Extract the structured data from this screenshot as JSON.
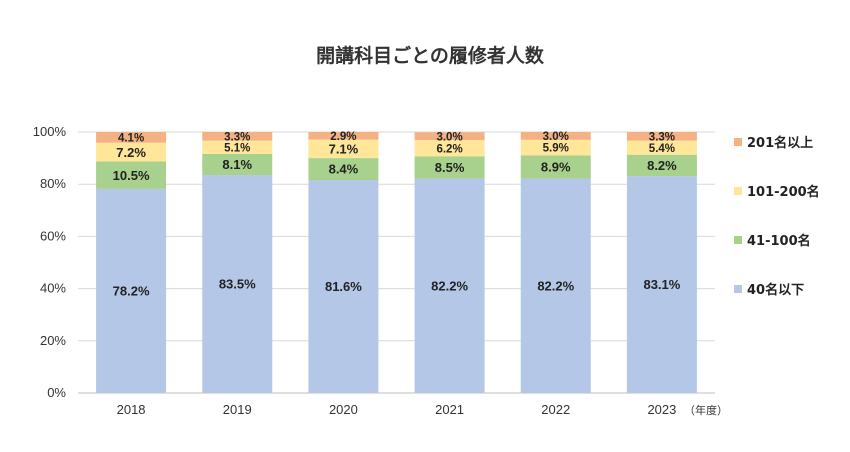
{
  "chart_data": {
    "type": "bar",
    "stacked": true,
    "title": "開講科目ごとの履修者人数",
    "x_unit": "（年度）",
    "categories": [
      "2018",
      "2019",
      "2020",
      "2021",
      "2022",
      "2023"
    ],
    "ylim": [
      0,
      100
    ],
    "y_ticks": [
      "0%",
      "20%",
      "40%",
      "60%",
      "80%",
      "100%"
    ],
    "grid": true,
    "legend_position": "right",
    "series": [
      {
        "name": "40名以下",
        "color": "#b4c7e7",
        "values": [
          78.2,
          83.5,
          81.6,
          82.2,
          82.2,
          83.1
        ],
        "labels": [
          "78.2%",
          "83.5%",
          "81.6%",
          "82.2%",
          "82.2%",
          "83.1%"
        ]
      },
      {
        "name": "41-100名",
        "color": "#a9d18e",
        "values": [
          10.5,
          8.1,
          8.4,
          8.5,
          8.9,
          8.2
        ],
        "labels": [
          "10.5%",
          "8.1%",
          "8.4%",
          "8.5%",
          "8.9%",
          "8.2%"
        ]
      },
      {
        "name": "101-200名",
        "color": "#ffe699",
        "values": [
          7.2,
          5.1,
          7.1,
          6.2,
          5.9,
          5.4
        ],
        "labels": [
          "7.2%",
          "5.1%",
          "7.1%",
          "6.2%",
          "5.9%",
          "5.4%"
        ]
      },
      {
        "name": "201名以上",
        "color": "#f4b183",
        "values": [
          4.1,
          3.3,
          2.9,
          3.0,
          3.0,
          3.3
        ],
        "labels": [
          "4.1%",
          "3.3%",
          "2.9%",
          "3.0%",
          "3.0%",
          "3.3%"
        ]
      }
    ]
  }
}
